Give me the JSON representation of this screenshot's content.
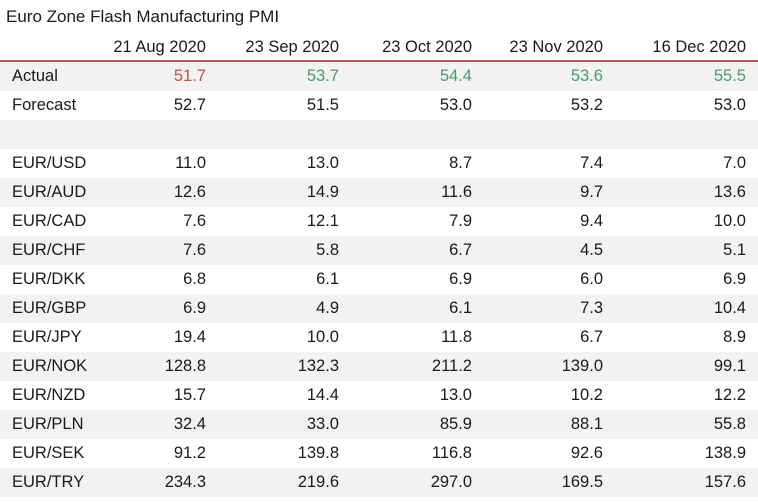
{
  "title": "Euro Zone Flash Manufacturing PMI",
  "columns": [
    "",
    "21 Aug 2020",
    "23 Sep 2020",
    "23 Oct 2020",
    "23 Nov 2020",
    "16 Dec 2020"
  ],
  "colors": {
    "below_forecast": "#c0504d",
    "above_forecast": "#4a9a6e",
    "header_rule": "#c0504d"
  },
  "rows": {
    "actual": {
      "label": "Actual",
      "values": [
        "51.7",
        "53.7",
        "54.4",
        "53.6",
        "55.5"
      ]
    },
    "forecast": {
      "label": "Forecast",
      "values": [
        "52.7",
        "51.5",
        "53.0",
        "53.2",
        "53.0"
      ]
    },
    "pairs": [
      {
        "label": "EUR/USD",
        "values": [
          "11.0",
          "13.0",
          "8.7",
          "7.4",
          "7.0"
        ]
      },
      {
        "label": "EUR/AUD",
        "values": [
          "12.6",
          "14.9",
          "11.6",
          "9.7",
          "13.6"
        ]
      },
      {
        "label": "EUR/CAD",
        "values": [
          "7.6",
          "12.1",
          "7.9",
          "9.4",
          "10.0"
        ]
      },
      {
        "label": "EUR/CHF",
        "values": [
          "7.6",
          "5.8",
          "6.7",
          "4.5",
          "5.1"
        ]
      },
      {
        "label": "EUR/DKK",
        "values": [
          "6.8",
          "6.1",
          "6.9",
          "6.0",
          "6.9"
        ]
      },
      {
        "label": "EUR/GBP",
        "values": [
          "6.9",
          "4.9",
          "6.1",
          "7.3",
          "10.4"
        ]
      },
      {
        "label": "EUR/JPY",
        "values": [
          "19.4",
          "10.0",
          "11.8",
          "6.7",
          "8.9"
        ]
      },
      {
        "label": "EUR/NOK",
        "values": [
          "128.8",
          "132.3",
          "211.2",
          "139.0",
          "99.1"
        ]
      },
      {
        "label": "EUR/NZD",
        "values": [
          "15.7",
          "14.4",
          "13.0",
          "10.2",
          "12.2"
        ]
      },
      {
        "label": "EUR/PLN",
        "values": [
          "32.4",
          "33.0",
          "85.9",
          "88.1",
          "55.8"
        ]
      },
      {
        "label": "EUR/SEK",
        "values": [
          "91.2",
          "139.8",
          "116.8",
          "92.6",
          "138.9"
        ]
      },
      {
        "label": "EUR/TRY",
        "values": [
          "234.3",
          "219.6",
          "297.0",
          "169.5",
          "157.6"
        ]
      }
    ]
  }
}
